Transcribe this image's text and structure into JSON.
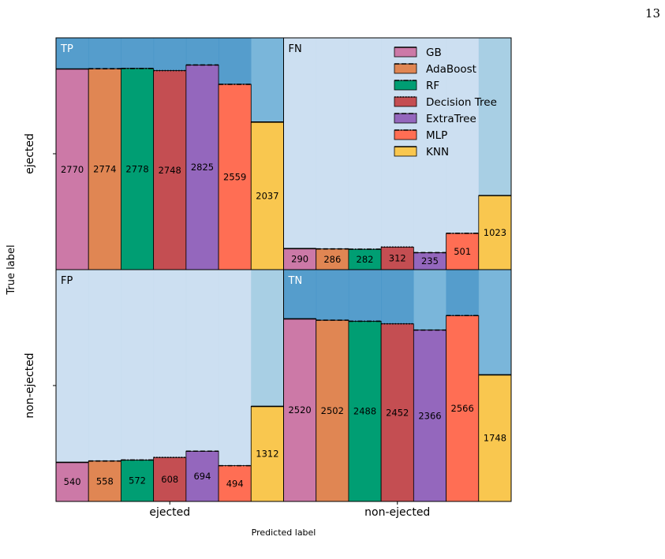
{
  "page_number": "13",
  "chart_data": {
    "type": "bar",
    "layout": "confusion-matrix grid of grouped bars",
    "xlabel": "Predicted label",
    "ylabel": "True label",
    "predicted_classes": [
      "ejected",
      "non-ejected"
    ],
    "true_classes": [
      "ejected",
      "non-ejected"
    ],
    "ylim": [
      0,
      3200
    ],
    "legend_position": "top-right",
    "series": [
      {
        "name": "GB",
        "color": "#cc79a7",
        "edge": "solid"
      },
      {
        "name": "AdaBoost",
        "color": "#e08653",
        "edge": "dashed"
      },
      {
        "name": "RF",
        "color": "#009e73",
        "edge": "dashdot"
      },
      {
        "name": "Decision Tree",
        "color": "#c44e52",
        "edge": "dotted"
      },
      {
        "name": "ExtraTree",
        "color": "#9467bd",
        "edge": "dashed"
      },
      {
        "name": "MLP",
        "color": "#ff6e54",
        "edge": "dashdot"
      },
      {
        "name": "KNN",
        "color": "#f9c74f",
        "edge": "solid"
      }
    ],
    "cells": [
      {
        "label": "TP",
        "true": "ejected",
        "predicted": "ejected",
        "values": [
          2770,
          2774,
          2778,
          2748,
          2825,
          2559,
          2037
        ]
      },
      {
        "label": "FN",
        "true": "ejected",
        "predicted": "non-ejected",
        "values": [
          290,
          286,
          282,
          312,
          235,
          501,
          1023
        ]
      },
      {
        "label": "FP",
        "true": "non-ejected",
        "predicted": "ejected",
        "values": [
          540,
          558,
          572,
          608,
          694,
          494,
          1312
        ]
      },
      {
        "label": "TN",
        "true": "non-ejected",
        "predicted": "non-ejected",
        "values": [
          2520,
          2502,
          2488,
          2452,
          2366,
          2566,
          1748
        ]
      }
    ],
    "background_colormap": [
      "#c6dbef",
      "#9ecae1",
      "#6baed6",
      "#4292c6"
    ]
  }
}
